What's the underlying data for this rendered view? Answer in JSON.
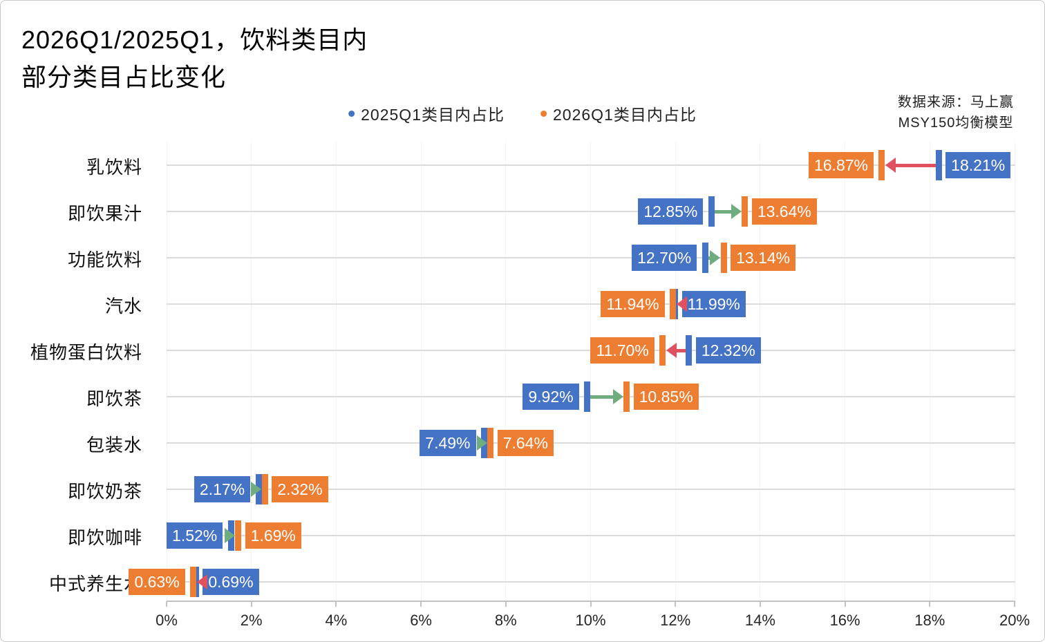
{
  "title": {
    "line1": "2026Q1/2025Q1，饮料类目内",
    "line2": "部分类目占比变化"
  },
  "legend": {
    "items": [
      {
        "label": "2025Q1类目内占比",
        "color": "#4472C4"
      },
      {
        "label": "2026Q1类目内占比",
        "color": "#ED7D31"
      }
    ]
  },
  "source": {
    "line1": "数据来源：马上赢",
    "line2": "MSY150均衡模型"
  },
  "colors": {
    "blue": "#4472C4",
    "orange": "#ED7D31",
    "increase_arrow": "#6FAD7F",
    "decrease_arrow": "#E0505E",
    "h_gridline": "#DBDBDB",
    "v_gridline": "#F3F3F3",
    "axis": "#C2C2C2"
  },
  "chart_data": {
    "type": "dumbbell",
    "title": "2026Q1/2025Q1，饮料类目内部分类目占比变化",
    "categories": [
      "乳饮料",
      "即饮果汁",
      "功能饮料",
      "汽水",
      "植物蛋白饮料",
      "即饮茶",
      "包装水",
      "即饮奶茶",
      "即饮咖啡",
      "中式养生水"
    ],
    "series": [
      {
        "name": "2025Q1类目内占比",
        "color": "#4472C4",
        "values": [
          18.21,
          12.85,
          12.7,
          11.99,
          12.32,
          9.92,
          7.49,
          2.17,
          1.52,
          0.69
        ]
      },
      {
        "name": "2026Q1类目内占比",
        "color": "#ED7D31",
        "values": [
          16.87,
          13.64,
          13.14,
          11.94,
          11.7,
          10.85,
          7.64,
          2.32,
          1.69,
          0.63
        ]
      }
    ],
    "value_labels": [
      [
        "18.21%",
        "16.87%"
      ],
      [
        "12.85%",
        "13.64%"
      ],
      [
        "12.70%",
        "13.14%"
      ],
      [
        "11.99%",
        "11.94%"
      ],
      [
        "12.32%",
        "11.70%"
      ],
      [
        "9.92%",
        "10.85%"
      ],
      [
        "7.49%",
        "7.64%"
      ],
      [
        "2.17%",
        "2.32%"
      ],
      [
        "1.52%",
        "1.69%"
      ],
      [
        "0.69%",
        "0.63%"
      ]
    ],
    "xlim": [
      0,
      20
    ],
    "x_tick_step": 2,
    "x_tick_labels": [
      "0%",
      "2%",
      "4%",
      "6%",
      "8%",
      "10%",
      "12%",
      "14%",
      "16%",
      "18%",
      "20%"
    ],
    "grid": "horizontal",
    "legend_position": "top-center"
  }
}
